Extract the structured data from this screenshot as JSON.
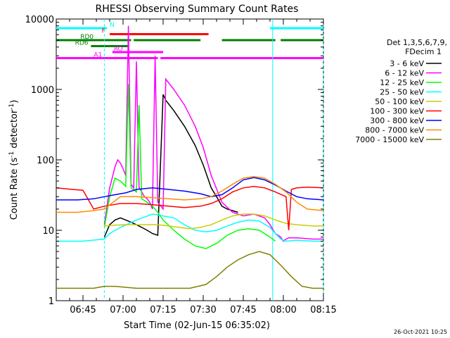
{
  "chart_data": {
    "type": "line",
    "title": "RHESSI Observing Summary Count Rates",
    "xlabel": "Start Time (02-Jun-15 06:35:02)",
    "ylabel_main": "Count Rate (s",
    "ylabel_sup": "-1",
    "ylabel_mid": " detector",
    "ylabel_end": ")",
    "footer": "26-Oct-2021 10:25",
    "x_unit": "minutes after 06:35:02",
    "xlim": [
      0,
      100
    ],
    "ylim": [
      1,
      10000
    ],
    "yscale": "log",
    "x_ticks": [
      {
        "v": 10,
        "label": "06:45"
      },
      {
        "v": 25,
        "label": "07:00"
      },
      {
        "v": 40,
        "label": "07:15"
      },
      {
        "v": 55,
        "label": "07:30"
      },
      {
        "v": 70,
        "label": "07:45"
      },
      {
        "v": 85,
        "label": "08:00"
      },
      {
        "v": 100,
        "label": "08:15"
      }
    ],
    "y_ticks": [
      {
        "v": 1,
        "label": "1"
      },
      {
        "v": 10,
        "label": "10"
      },
      {
        "v": 100,
        "label": "100"
      },
      {
        "v": 1000,
        "label": "1000"
      },
      {
        "v": 10000,
        "label": "10000"
      }
    ],
    "legend_title": [
      "Det 1,3,5,6,7,9,",
      "FDecim 1"
    ],
    "series": [
      {
        "name": "3 - 6 keV",
        "color": "#000000",
        "x": [
          18,
          20,
          22,
          24,
          26,
          28,
          30,
          32,
          34,
          36,
          38,
          40,
          41,
          44,
          48,
          52,
          55,
          58,
          60,
          62,
          64,
          66,
          68
        ],
        "y": [
          8,
          12,
          14,
          15,
          14,
          13,
          12,
          11,
          10,
          9,
          8.5,
          850,
          700,
          500,
          300,
          160,
          85,
          40,
          30,
          22,
          20,
          19,
          18
        ]
      },
      {
        "name": "6 - 12 keV",
        "color": "#ff00ff",
        "x": [
          18,
          20,
          22,
          23,
          24,
          25,
          26,
          27,
          28,
          29,
          30,
          31,
          32,
          33,
          34,
          35,
          36,
          37,
          38,
          40,
          41,
          44,
          48,
          52,
          55,
          58,
          62,
          66,
          70,
          74,
          78,
          80,
          82,
          84,
          85,
          86,
          87,
          90,
          96,
          100
        ],
        "y": [
          12,
          40,
          80,
          100,
          90,
          75,
          60,
          8000,
          45,
          40,
          2500,
          40,
          35,
          30,
          28,
          25,
          20,
          3000,
          25,
          20,
          1400,
          1000,
          600,
          300,
          150,
          60,
          25,
          18,
          16,
          17,
          15,
          12,
          9,
          8,
          7,
          7.5,
          7.8,
          7.8,
          7.5,
          7.5
        ]
      },
      {
        "name": "12 - 25 keV",
        "color": "#00ff00",
        "x": [
          18,
          20,
          22,
          24,
          26,
          27,
          28,
          30,
          31,
          32,
          34,
          36,
          38,
          40,
          44,
          48,
          52,
          56,
          60,
          64,
          68,
          72,
          76,
          80,
          82
        ],
        "y": [
          11,
          30,
          55,
          50,
          42,
          1200,
          40,
          35,
          600,
          28,
          25,
          22,
          18,
          14,
          10,
          7.5,
          6,
          5.5,
          6.5,
          8.5,
          10,
          10.5,
          10,
          8,
          7
        ]
      },
      {
        "name": "25 - 50 keV",
        "color": "#00ffff",
        "x": [
          0,
          10,
          18,
          20,
          24,
          30,
          36,
          40,
          44,
          48,
          52,
          56,
          60,
          64,
          68,
          72,
          76,
          80,
          82,
          84,
          86,
          90,
          96,
          100
        ],
        "y": [
          7,
          7,
          7.5,
          9,
          11,
          14,
          17,
          16,
          15,
          12,
          10,
          9.5,
          10,
          11.5,
          13,
          14,
          13.5,
          11,
          9,
          7.5,
          7,
          7.2,
          7,
          7
        ]
      },
      {
        "name": "50 - 100 keV",
        "color": "#cccc00",
        "x": [
          18,
          22,
          26,
          30,
          34,
          38,
          42,
          46,
          50,
          54,
          58,
          62,
          66,
          70,
          74,
          78,
          82,
          86,
          90,
          96,
          100
        ],
        "y": [
          11.5,
          11.8,
          12,
          12,
          12,
          12,
          11.5,
          11,
          10.5,
          11,
          12,
          14,
          16,
          17,
          17,
          16,
          14,
          12.5,
          12,
          11.5,
          11.5
        ]
      },
      {
        "name": "100 - 300 keV",
        "color": "#ff0000",
        "x": [
          0,
          6,
          10,
          14,
          18,
          24,
          30,
          36,
          42,
          48,
          54,
          58,
          62,
          66,
          70,
          74,
          78,
          82,
          86,
          87,
          88,
          90,
          94,
          100
        ],
        "y": [
          40,
          38,
          37,
          20,
          22,
          24,
          24,
          23,
          22,
          21,
          22,
          24,
          28,
          35,
          40,
          42,
          40,
          35,
          30,
          10,
          38,
          40,
          41,
          40
        ]
      },
      {
        "name": "300 - 800 keV",
        "color": "#0000ff",
        "x": [
          0,
          8,
          14,
          18,
          22,
          26,
          30,
          36,
          42,
          48,
          54,
          58,
          62,
          66,
          70,
          74,
          78,
          82,
          86,
          90,
          94,
          100
        ],
        "y": [
          27,
          27,
          28,
          30,
          32,
          34,
          38,
          40,
          38,
          36,
          33,
          30,
          32,
          40,
          52,
          56,
          52,
          44,
          36,
          30,
          28,
          27
        ]
      },
      {
        "name": "800 - 7000 keV",
        "color": "#ff8c00",
        "x": [
          0,
          8,
          14,
          18,
          24,
          30,
          36,
          42,
          48,
          54,
          58,
          62,
          66,
          70,
          74,
          78,
          82,
          86,
          90,
          94,
          100
        ],
        "y": [
          18,
          18,
          19,
          20,
          30,
          30,
          29,
          28,
          27,
          28,
          30,
          36,
          45,
          55,
          58,
          55,
          45,
          35,
          25,
          20,
          19
        ]
      },
      {
        "name": "7000 - 15000 keV",
        "color": "#808000",
        "x": [
          0,
          8,
          14,
          18,
          22,
          30,
          40,
          50,
          56,
          60,
          64,
          68,
          72,
          76,
          80,
          84,
          88,
          92,
          96,
          100
        ],
        "y": [
          1.5,
          1.5,
          1.5,
          1.6,
          1.6,
          1.5,
          1.5,
          1.5,
          1.7,
          2.2,
          3.0,
          3.8,
          4.5,
          5.0,
          4.5,
          3.2,
          2.2,
          1.6,
          1.5,
          1.5
        ]
      }
    ],
    "flags": [
      {
        "label": "N",
        "color": "#00ffff",
        "segments": [
          [
            0,
            19
          ],
          [
            80,
            100
          ]
        ]
      },
      {
        "label": "F",
        "color": "#ff0000",
        "segments": [
          [
            20,
            57
          ]
        ]
      },
      {
        "label": "RD0",
        "color": "#008000",
        "segments": [
          [
            0,
            28
          ],
          [
            29,
            54
          ],
          [
            62,
            82
          ],
          [
            84,
            100
          ]
        ]
      },
      {
        "label": "RD6",
        "color": "#008000",
        "segments": [
          [
            13,
            27
          ]
        ]
      },
      {
        "label": "AO",
        "color": "#ff00ff",
        "segments": [
          [
            21,
            40
          ]
        ]
      },
      {
        "label": "A1",
        "color": "#ff00ff",
        "segments": [
          [
            0,
            38
          ],
          [
            39,
            100
          ]
        ]
      }
    ],
    "vlines": [
      {
        "x": 18,
        "color": "#00ffff",
        "style": "dashed"
      },
      {
        "x": 81,
        "color": "#00ffff",
        "style": "solid"
      },
      {
        "x": 100,
        "color": "#00ffff",
        "style": "dashed"
      }
    ]
  }
}
